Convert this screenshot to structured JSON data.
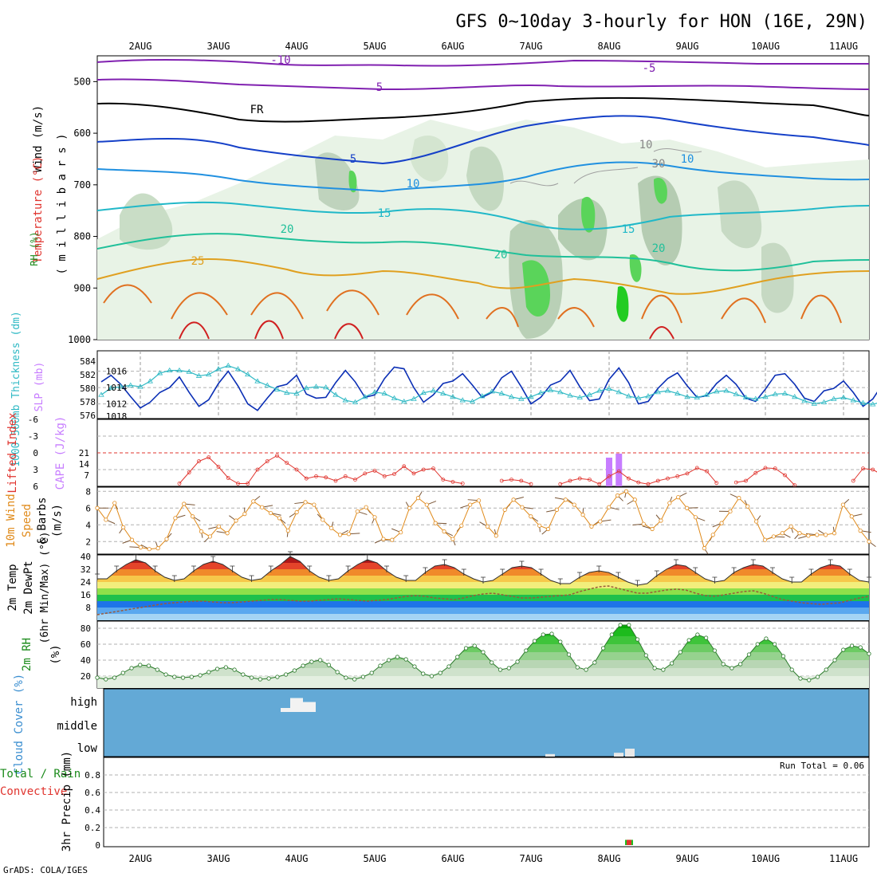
{
  "title": "GFS 0~10day 3-hourly for HON (16E, 29N)",
  "credit": "GrADS: COLA/IGES",
  "run_total": "Run Total = 0.06",
  "colors": {
    "grid": "#a0a0a0",
    "trough": "#0b2fb5",
    "cape": "#c77dff",
    "lifted": "#e0342e",
    "wind_speed": "#e08a1a",
    "thickness": "#2fb9c4",
    "cloud": "#63a9d6",
    "rh_green": "#1fbf1f"
  },
  "chart_data": [
    {
      "type": "area",
      "panel": "upper-air cross section",
      "x_ticks": [
        "2AUG",
        "3AUG",
        "4AUG",
        "5AUG",
        "6AUG",
        "7AUG",
        "8AUG",
        "9AUG",
        "10AUG",
        "11AUG"
      ],
      "y_ticks": [
        "500",
        "600",
        "700",
        "800",
        "900",
        "1000"
      ],
      "ylabel_parts": [
        "RH (%)",
        "Temperature (°C)",
        "Wind (m/s)",
        "( m i l l i b a r s )"
      ],
      "contour_labels": [
        "-10",
        "-5",
        "5",
        "FR",
        "5",
        "10",
        "10",
        "15",
        "15",
        "20",
        "20",
        "20",
        "25",
        "10",
        "30"
      ],
      "ylim": [
        450,
        1000
      ]
    },
    {
      "type": "line",
      "panel": "thickness and SLP",
      "ylabel_left": "1000-500mb Thickness (dm)",
      "ylabel_right": "SLP (mb)",
      "y_ticks_left": [
        "584",
        "582",
        "580",
        "578",
        "576"
      ],
      "y_ticks_right": [
        "1016",
        "1014",
        "1012",
        "1018"
      ],
      "series": [
        {
          "name": "SLP (mb)",
          "values": [
            1014.7,
            1015.5,
            1014.4,
            1012.9,
            1011.5,
            1012.2,
            1013.4,
            1014.0,
            1015.3,
            1013.4,
            1011.7,
            1012.5,
            1014.5,
            1016.0,
            1014.2,
            1012.0,
            1011.2,
            1012.7,
            1014.1,
            1014.4,
            1015.5,
            1013.2,
            1012.7,
            1012.8,
            1014.6,
            1016.1,
            1014.7,
            1012.8,
            1013.1,
            1015.1,
            1016.5,
            1016.3,
            1014.0,
            1012.2,
            1013.1,
            1014.5,
            1014.8,
            1015.7,
            1014.3,
            1012.8,
            1013.4,
            1015.2,
            1016.0,
            1014.1,
            1012.0,
            1012.8,
            1014.3,
            1014.8,
            1016.1,
            1014.1,
            1012.4,
            1012.6,
            1015.0,
            1016.4,
            1014.6,
            1012.0,
            1012.3,
            1013.9,
            1015.1,
            1015.8,
            1014.2,
            1012.8,
            1013.0,
            1014.5,
            1015.5,
            1014.4,
            1012.7,
            1012.3,
            1013.8,
            1015.5,
            1015.7,
            1014.4,
            1012.7,
            1012.3,
            1013.6,
            1013.9,
            1014.8,
            1013.4,
            1011.7,
            1012.6,
            1014.4
          ]
        },
        {
          "name": "1000-500mb Thickness (dm)",
          "values": [
            579.0,
            580.0,
            580.2,
            580.4,
            580.2,
            581.0,
            582.2,
            582.6,
            582.6,
            582.4,
            581.8,
            582.0,
            582.8,
            583.3,
            582.8,
            582.0,
            581.0,
            580.4,
            579.8,
            579.3,
            579.2,
            580.0,
            580.2,
            580.1,
            579.0,
            578.2,
            577.9,
            578.7,
            579.4,
            579.2,
            578.5,
            578.0,
            578.4,
            579.3,
            579.6,
            579.2,
            578.7,
            578.2,
            578.0,
            578.8,
            579.5,
            579.2,
            578.7,
            578.4,
            578.7,
            579.3,
            579.7,
            579.4,
            578.9,
            578.6,
            579.0,
            579.6,
            579.9,
            579.4,
            578.8,
            578.5,
            578.8,
            579.4,
            579.6,
            579.2,
            578.7,
            578.6,
            579.0,
            579.5,
            579.6,
            579.1,
            578.6,
            578.4,
            578.7,
            579.1,
            579.2,
            578.7,
            578.1,
            577.7,
            577.9,
            578.4,
            578.6,
            578.2,
            577.8,
            577.6,
            578.0
          ]
        }
      ]
    },
    {
      "type": "bar",
      "panel": "lifted index and CAPE",
      "ylabel_left": "Lifted Index",
      "ylabel_right": "CAPE (J/kg)",
      "y_ticks_left": [
        "-6",
        "-3",
        "0",
        "3",
        "6"
      ],
      "y_ticks_right": [
        "21",
        "14",
        "7"
      ],
      "series": [
        {
          "name": "CAPE (J/kg)",
          "x_index": [
            52,
            53
          ],
          "values": [
            18,
            20.5
          ]
        },
        {
          "name": "Lifted Index",
          "values": [
            null,
            null,
            null,
            null,
            null,
            null,
            null,
            null,
            5.5,
            3.5,
            1.5,
            0.8,
            2.5,
            4.5,
            5.5,
            5.5,
            3.0,
            1.5,
            0.5,
            1.8,
            3.0,
            4.6,
            4.2,
            4.4,
            5.0,
            4.2,
            4.8,
            3.7,
            3.2,
            4.2,
            3.8,
            2.4,
            3.7,
            3.0,
            2.8,
            4.8,
            5.2,
            5.5,
            null,
            null,
            null,
            5.0,
            4.8,
            5.0,
            5.6,
            null,
            null,
            5.6,
            5.0,
            4.6,
            4.8,
            5.6,
            4.2,
            3.3,
            4.6,
            5.3,
            5.6,
            5.0,
            4.6,
            4.2,
            3.7,
            2.7,
            3.3,
            5.4,
            null,
            5.3,
            5.0,
            3.6,
            2.7,
            2.8,
            4.0,
            5.8,
            null,
            null,
            null,
            null,
            null,
            5.0,
            2.8,
            3.0,
            4.0
          ]
        }
      ]
    },
    {
      "type": "line",
      "panel": "10m wind",
      "ylabel_parts": [
        "10m Wind",
        "Speed",
        "& Barbs",
        "(m/s)"
      ],
      "y_ticks": [
        "8",
        "6",
        "4",
        "2"
      ],
      "series": [
        {
          "name": "Speed",
          "values": [
            6.0,
            4.6,
            6.6,
            3.7,
            2.2,
            1.3,
            1.1,
            1.2,
            2.3,
            4.8,
            6.5,
            5.0,
            3.2,
            2.6,
            3.8,
            3.0,
            4.5,
            5.3,
            6.8,
            6.1,
            5.4,
            4.8,
            3.3,
            5.5,
            6.7,
            6.4,
            4.6,
            3.6,
            2.8,
            2.9,
            5.6,
            6.1,
            4.9,
            2.3,
            2.2,
            3.1,
            6.0,
            7.2,
            6.4,
            4.2,
            3.2,
            2.3,
            3.9,
            6.4,
            6.9,
            3.8,
            2.7,
            5.8,
            7.0,
            6.1,
            5.0,
            3.9,
            3.5,
            5.8,
            7.0,
            6.4,
            5.2,
            3.8,
            4.4,
            6.1,
            7.5,
            8.0,
            7.0,
            4.1,
            3.5,
            4.5,
            6.6,
            7.3,
            6.0,
            4.9,
            1.2,
            2.8,
            4.2,
            5.6,
            7.2,
            6.2,
            4.4,
            2.2,
            2.6,
            3.0,
            3.8,
            3.0,
            2.7,
            2.8,
            2.8,
            3.0,
            6.4,
            5.0,
            3.3,
            2.0
          ]
        }
      ]
    },
    {
      "type": "area",
      "panel": "2m temperature",
      "ylabel_parts": [
        "2m Temp",
        "2m DewPt",
        "(6hr Min/Max) (°C)"
      ],
      "y_ticks": [
        "40",
        "32",
        "24",
        "16",
        "8"
      ],
      "series": [
        {
          "name": "2m Temp",
          "values": [
            26,
            26,
            31,
            35,
            38,
            36,
            31,
            27,
            25,
            26,
            31,
            35,
            37,
            35,
            31,
            27,
            25,
            26,
            31,
            35,
            40,
            37,
            31,
            27,
            25,
            26,
            31,
            35,
            38,
            36,
            31,
            27,
            25,
            25,
            30,
            34,
            35,
            33,
            29,
            26,
            24,
            25,
            29,
            33,
            34,
            33,
            29,
            25,
            23,
            23,
            27,
            30,
            31,
            30,
            27,
            24,
            22,
            23,
            28,
            32,
            35,
            34,
            30,
            26,
            24,
            25,
            30,
            33,
            35,
            34,
            30,
            26,
            24,
            24,
            29,
            33,
            35,
            34,
            29,
            25,
            24
          ]
        },
        {
          "name": "2m DewPt",
          "values": [
            3.5,
            4.5,
            5.5,
            6.5,
            7.5,
            8.5,
            9.5,
            10.5,
            11.0,
            11.5,
            12.0,
            12.0,
            11.5,
            11.0,
            11.0,
            11.5,
            12.0,
            12.5,
            13.0,
            13.0,
            12.5,
            12.0,
            12.0,
            12.5,
            13.0,
            13.5,
            13.0,
            12.5,
            12.0,
            12.5,
            13.0,
            14.0,
            15.0,
            15.5,
            15.0,
            14.0,
            13.5,
            13.0,
            14.0,
            15.5,
            16.5,
            17.0,
            16.0,
            15.0,
            14.0,
            14.0,
            14.5,
            15.0,
            15.5,
            16.0,
            18.0,
            19.5,
            21.0,
            21.5,
            20.0,
            18.5,
            17.0,
            17.0,
            18.0,
            19.0,
            19.5,
            19.0,
            17.0,
            15.5,
            15.0,
            16.0,
            17.0,
            18.0,
            18.5,
            17.0,
            15.0,
            13.0,
            12.0,
            11.0,
            10.5,
            10.0,
            10.5,
            11.0,
            12.5,
            14.0,
            15.0
          ]
        }
      ]
    },
    {
      "type": "area",
      "panel": "2m relative humidity",
      "ylabel": "2m RH (%)",
      "y_ticks": [
        "80",
        "60",
        "40",
        "20"
      ],
      "series": [
        {
          "name": "2m RH",
          "values": [
            18,
            16,
            18,
            24,
            30,
            34,
            33,
            28,
            22,
            19,
            18,
            19,
            21,
            25,
            29,
            31,
            28,
            22,
            18,
            16,
            17,
            19,
            22,
            27,
            33,
            38,
            40,
            34,
            25,
            18,
            16,
            19,
            24,
            33,
            40,
            44,
            41,
            32,
            23,
            20,
            24,
            32,
            44,
            55,
            58,
            50,
            37,
            28,
            30,
            38,
            52,
            64,
            72,
            73,
            63,
            47,
            31,
            28,
            37,
            55,
            72,
            84,
            84,
            66,
            46,
            30,
            28,
            36,
            50,
            65,
            72,
            68,
            52,
            35,
            30,
            35,
            47,
            60,
            67,
            60,
            45,
            28,
            17,
            15,
            19,
            28,
            40,
            53,
            58,
            56,
            48
          ]
        }
      ]
    },
    {
      "type": "bar",
      "panel": "cloud cover",
      "ylabel": "Cloud Cover (%)",
      "y_ticks": [
        "high",
        "middle",
        "low"
      ],
      "series": [
        {
          "name": "high",
          "x": [
            "4AUG",
            "4AUG",
            "4AUG"
          ],
          "values": [
            10,
            35,
            25
          ]
        },
        {
          "name": "low",
          "x": [
            "7AUG",
            "8AUG",
            "8AUG"
          ],
          "values": [
            8,
            12,
            25
          ]
        }
      ]
    },
    {
      "type": "bar",
      "panel": "3hr precipitation",
      "ylabel_parts": [
        "Total / Rain",
        "Convective",
        "3hr Precip (mm)"
      ],
      "y_ticks": [
        "0.8",
        "0.6",
        "0.4",
        "0.2",
        "0"
      ],
      "ylim": [
        0,
        0.95
      ],
      "series": [
        {
          "name": "Total / Rain",
          "x": [
            "8AUG"
          ],
          "values": [
            0.06
          ]
        },
        {
          "name": "Convective",
          "x": [
            "8AUG"
          ],
          "values": [
            0.06
          ]
        }
      ]
    }
  ]
}
